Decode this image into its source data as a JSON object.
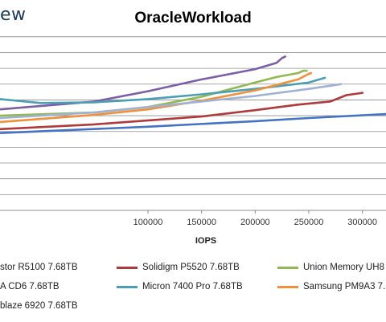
{
  "watermark": "ew",
  "chart_data": {
    "type": "line",
    "title": "OracleWorkload",
    "xlabel": "IOPS",
    "ylabel": "",
    "xlim": [
      -38000,
      322000
    ],
    "ylim": [
      0,
      11.6
    ],
    "xticks": [
      100000,
      150000,
      200000,
      250000,
      300000
    ],
    "xtick_labels": [
      "100000",
      "150000",
      "200000",
      "250000",
      "300000"
    ],
    "yticks": [
      1,
      2,
      3,
      4,
      5,
      6,
      7,
      8,
      9,
      10,
      11
    ],
    "grid": true,
    "legend_position": "bottom",
    "series": [
      {
        "name": "stor R5100 7.68TB",
        "color": "#4472C4",
        "x": [
          -38000,
          100000,
          200000,
          250000,
          322000
        ],
        "y": [
          4.9,
          5.3,
          5.65,
          5.85,
          6.1
        ]
      },
      {
        "name": "Solidigm P5520 7.68TB",
        "color": "#B03A3A",
        "x": [
          -38000,
          50000,
          150000,
          200000,
          240000,
          270000,
          285000,
          300000
        ],
        "y": [
          5.15,
          5.45,
          5.95,
          6.35,
          6.7,
          6.9,
          7.3,
          7.45
        ]
      },
      {
        "name": "Union Memory UH8",
        "color": "#92B94F",
        "x": [
          -38000,
          50000,
          100000,
          150000,
          200000,
          220000,
          240000,
          245000,
          248000
        ],
        "y": [
          6.0,
          6.2,
          6.55,
          7.2,
          8.1,
          8.45,
          8.7,
          8.85,
          8.85
        ]
      },
      {
        "name": "A CD6 7.68TB",
        "color": "#7B5EA7",
        "x": [
          -38000,
          50000,
          100000,
          150000,
          200000,
          220000,
          225000,
          228000
        ],
        "y": [
          6.4,
          6.9,
          7.55,
          8.3,
          8.95,
          9.35,
          9.65,
          9.75
        ]
      },
      {
        "name": "Micron 7400 Pro 7.68TB",
        "color": "#4A9FB5",
        "x": [
          -38000,
          0,
          50000,
          100000,
          150000,
          200000,
          250000,
          265000
        ],
        "y": [
          7.05,
          6.8,
          6.85,
          7.05,
          7.35,
          7.7,
          8.1,
          8.4
        ]
      },
      {
        "name": "Samsung PM9A3 7.",
        "color": "#F0913A",
        "x": [
          -38000,
          50000,
          100000,
          150000,
          200000,
          240000,
          250000,
          252000
        ],
        "y": [
          5.6,
          6.05,
          6.4,
          6.95,
          7.6,
          8.3,
          8.65,
          8.7
        ]
      },
      {
        "name": "blaze 6920 7.68TB",
        "color": "#9FB2D6",
        "x": [
          -38000,
          50000,
          100000,
          150000,
          200000,
          250000,
          280000
        ],
        "y": [
          5.85,
          6.2,
          6.55,
          6.9,
          7.25,
          7.7,
          8.0
        ]
      }
    ]
  }
}
